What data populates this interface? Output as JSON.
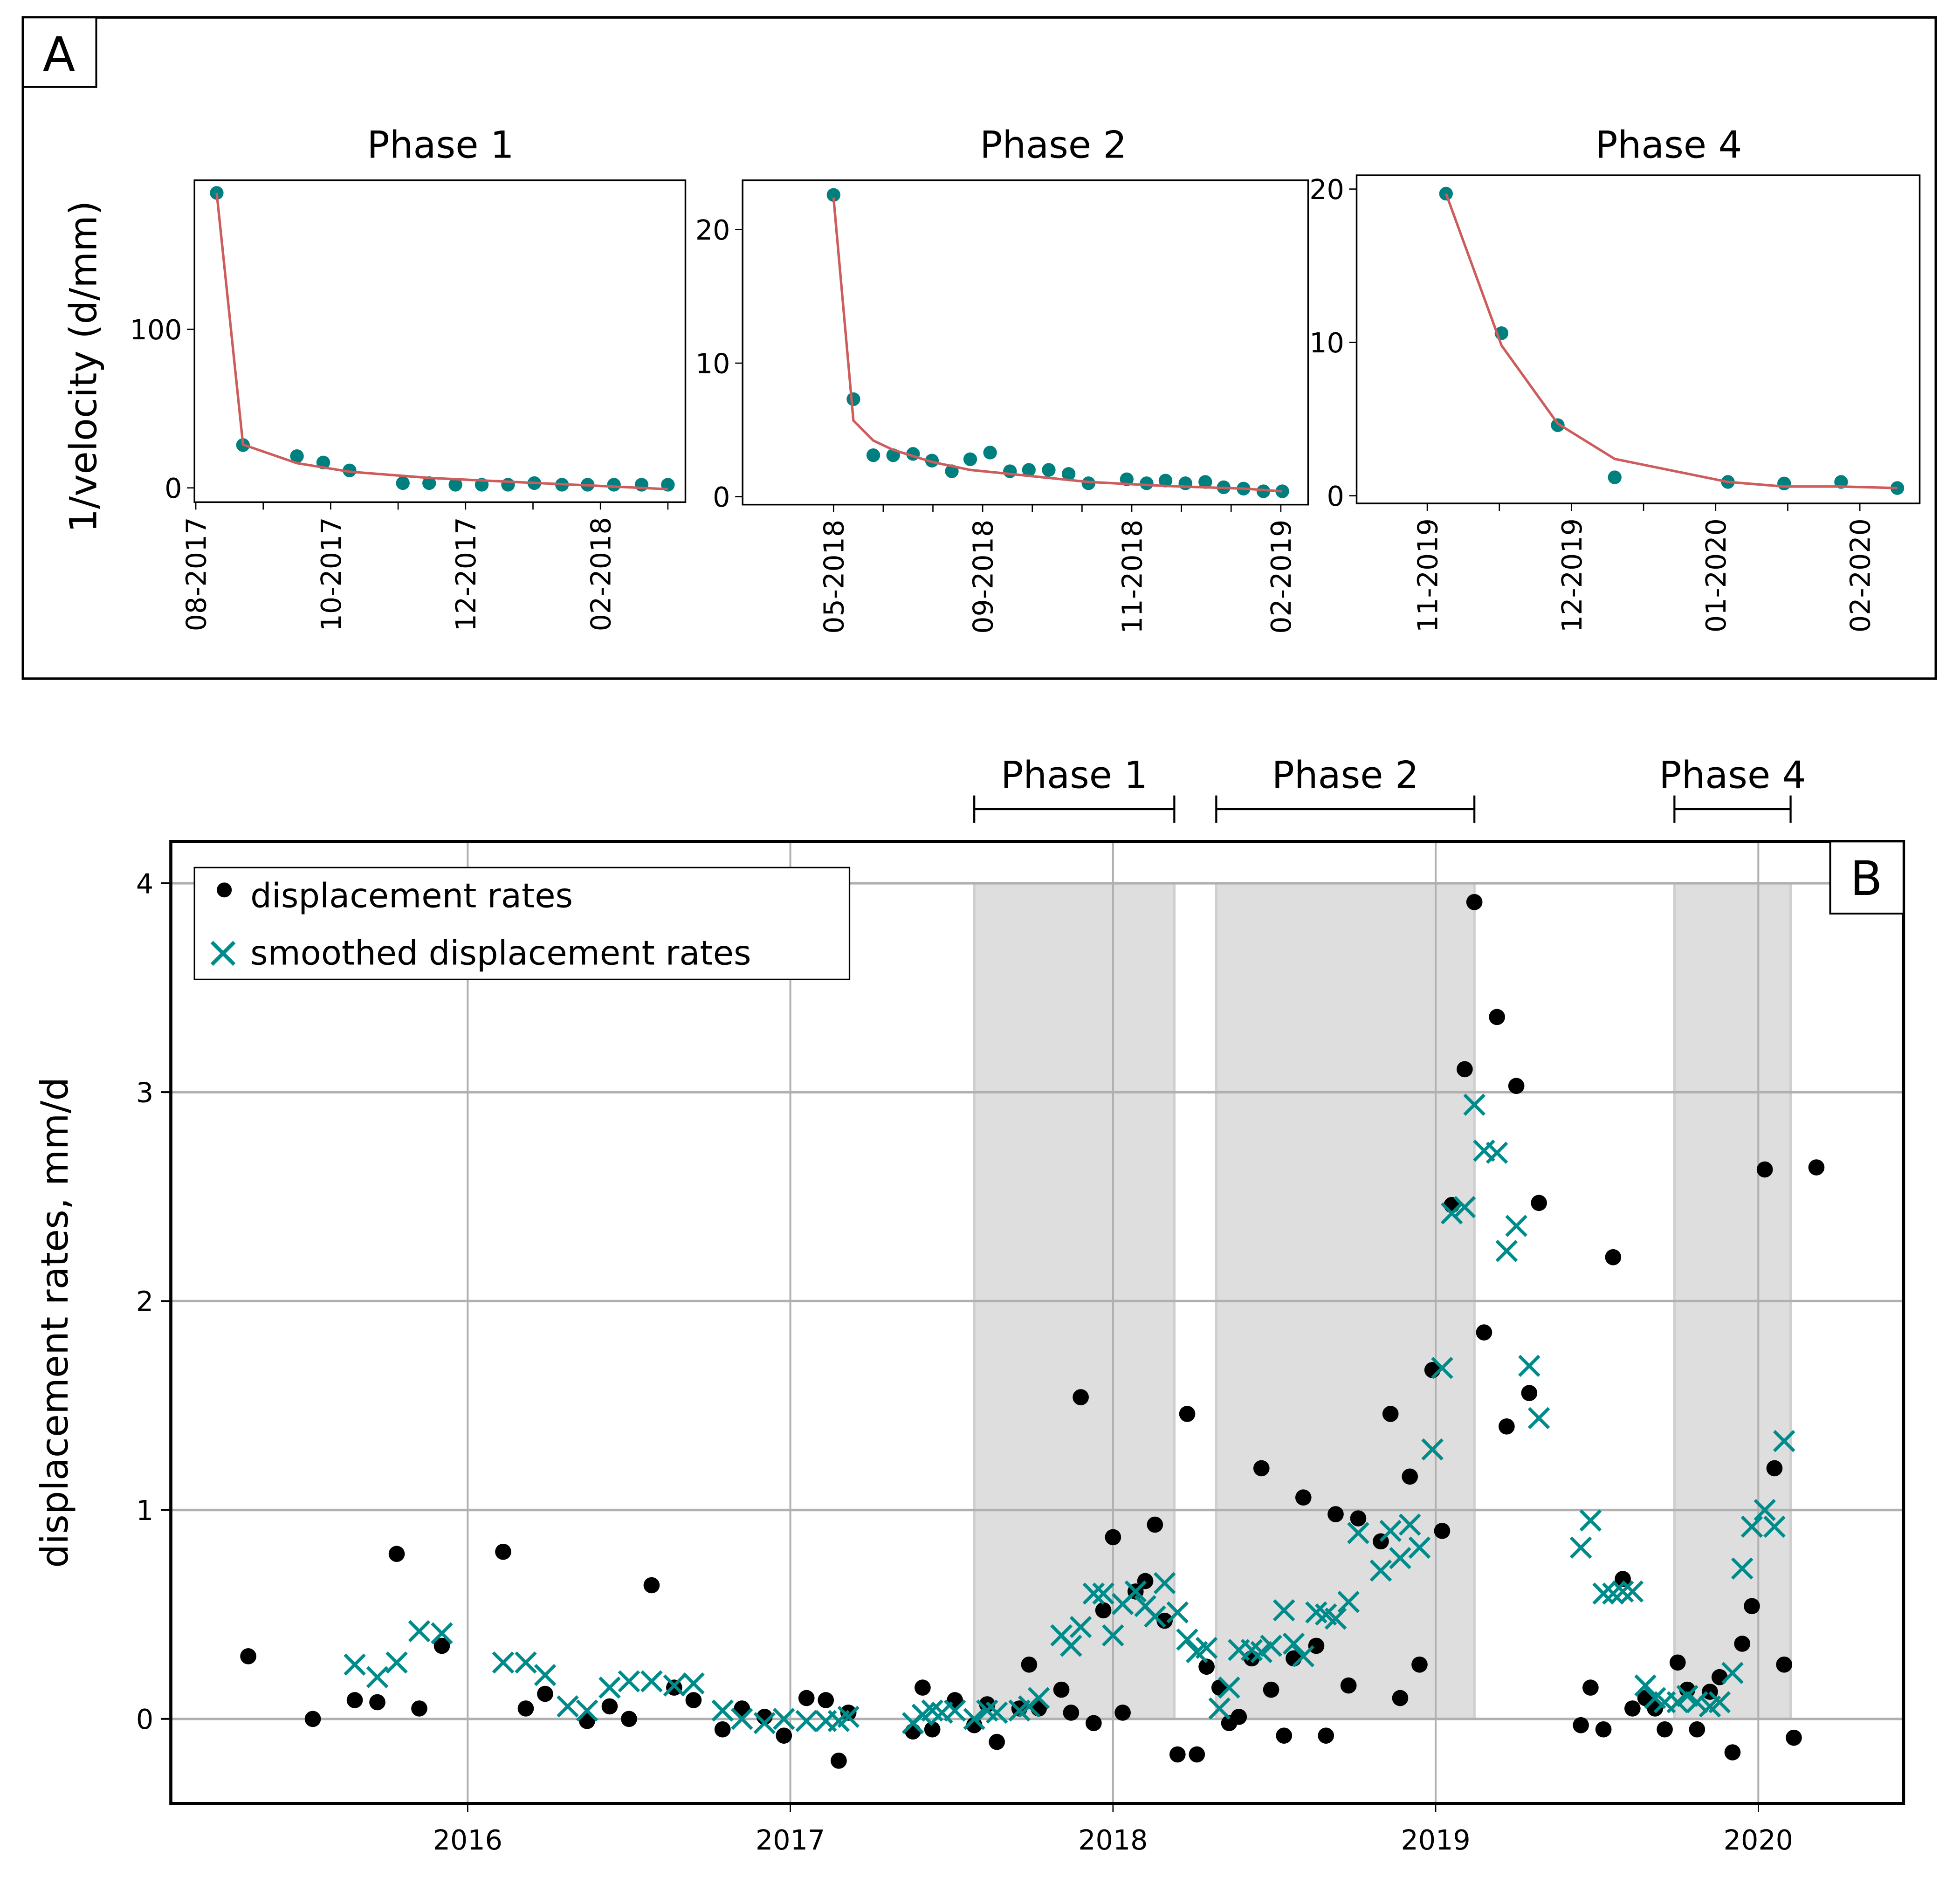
{
  "figure": {
    "panel_a_label": "A",
    "panel_b_label": "B"
  },
  "colors": {
    "marker_teal": "#007f7f",
    "fit_line": "#cd5c5c",
    "smoothed_cross": "#008b8b",
    "dot": "#000000",
    "phase_shade": "#dedede",
    "grid": "#b0b0b0"
  },
  "chart_data": [
    {
      "id": "panel-a-phase-1",
      "type": "scatter",
      "title": "Phase 1",
      "ylabel": "1/velocity (d/mm)",
      "xlabel": "",
      "x_unit": "tick index (1 tick = 1 month)",
      "x_ticks": [
        "08-2017",
        "",
        "10-2017",
        "",
        "12-2017",
        "",
        "02-2018",
        ""
      ],
      "xlim": [
        -0.02,
        7.26
      ],
      "y_ticks": [
        0,
        100
      ],
      "ylim": [
        -9,
        194
      ],
      "points": {
        "x": [
          0.31,
          0.7,
          1.5,
          1.89,
          2.28,
          3.07,
          3.46,
          3.85,
          4.24,
          4.63,
          5.02,
          5.43,
          5.81,
          6.2,
          6.61,
          7.0
        ],
        "y": [
          186,
          27,
          20,
          16,
          11,
          3,
          3,
          2,
          2,
          2,
          3,
          2,
          2,
          2,
          2,
          2
        ]
      },
      "fit_line": {
        "x": [
          0.31,
          0.7,
          1.5,
          2.28,
          3.46,
          4.63,
          5.81,
          7.0
        ],
        "y": [
          186,
          27.3,
          15.6,
          10.2,
          6.3,
          3.9,
          1.6,
          -0.8
        ]
      }
    },
    {
      "id": "panel-a-phase-2",
      "type": "scatter",
      "title": "Phase 2",
      "ylabel": "",
      "xlabel": "",
      "x_unit": "tick index",
      "x_ticks": [
        "05-2018",
        "",
        "",
        "09-2018",
        "",
        "",
        "11-2018",
        "",
        "",
        "02-2019"
      ],
      "xlim": [
        -1.83,
        9.55
      ],
      "y_ticks": [
        0,
        10,
        20
      ],
      "ylim": [
        -0.6,
        23.7
      ],
      "points": {
        "x": [
          0.0,
          0.4,
          0.8,
          1.2,
          1.6,
          1.98,
          2.38,
          2.75,
          3.15,
          3.55,
          3.93,
          4.33,
          4.73,
          5.13,
          5.9,
          6.3,
          6.68,
          7.08,
          7.48,
          7.85,
          8.25,
          8.65,
          9.03
        ],
        "y": [
          22.6,
          7.3,
          3.1,
          3.1,
          3.2,
          2.7,
          1.9,
          2.8,
          3.3,
          1.9,
          2.0,
          2.0,
          1.7,
          1.0,
          1.3,
          1.0,
          1.2,
          1.0,
          1.1,
          0.7,
          0.6,
          0.4,
          0.4
        ]
      },
      "fit_line": {
        "x": [
          0.0,
          0.4,
          0.8,
          1.2,
          1.98,
          2.75,
          3.55,
          5.13,
          6.68,
          8.25,
          9.03
        ],
        "y": [
          22.4,
          5.7,
          4.2,
          3.5,
          2.6,
          2.0,
          1.7,
          1.1,
          0.8,
          0.6,
          0.4
        ]
      }
    },
    {
      "id": "panel-a-phase-4",
      "type": "scatter",
      "title": "Phase 4",
      "ylabel": "",
      "xlabel": "",
      "x_unit": "tick index (1 tick ≈ half month)",
      "x_ticks": [
        "11-2019",
        "",
        "12-2019",
        "",
        "01-2020",
        "",
        "02-2020"
      ],
      "xlim": [
        -0.98,
        6.83
      ],
      "y_ticks": [
        0,
        10,
        20
      ],
      "ylim": [
        -0.5,
        20.9
      ],
      "points": {
        "x": [
          0.26,
          1.03,
          1.81,
          2.6,
          4.17,
          4.95,
          5.74,
          6.52
        ],
        "y": [
          19.7,
          10.6,
          4.6,
          1.2,
          0.9,
          0.8,
          0.9,
          0.5
        ]
      },
      "fit_line": {
        "x": [
          0.26,
          1.03,
          1.81,
          2.6,
          4.17,
          4.95,
          5.74,
          6.52
        ],
        "y": [
          19.7,
          9.8,
          4.7,
          2.4,
          0.9,
          0.6,
          0.6,
          0.5
        ]
      }
    },
    {
      "id": "panel-b",
      "type": "scatter",
      "title": "",
      "xlabel": "",
      "ylabel": "displacement rates, mm/d",
      "x_unit": "decimal year",
      "x_ticks": [
        2016,
        2017,
        2018,
        2019,
        2020
      ],
      "xlim": [
        2015.08,
        2020.45
      ],
      "y_ticks": [
        0,
        1,
        2,
        3,
        4
      ],
      "ylim": [
        -0.405,
        4.2
      ],
      "grid": true,
      "legend": {
        "position": "top-left",
        "entries": [
          {
            "label": "displacement rates",
            "marker": "dot"
          },
          {
            "label": "smoothed displacement rates",
            "marker": "x"
          }
        ]
      },
      "phases": [
        {
          "label": "Phase 1",
          "start": 2017.57,
          "end": 2018.19
        },
        {
          "label": "Phase 2",
          "start": 2018.32,
          "end": 2019.12
        },
        {
          "label": "Phase 4",
          "start": 2019.74,
          "end": 2020.1
        }
      ],
      "phase_shade_top": 4.0,
      "series": [
        {
          "name": "displacement rates",
          "marker": "dot",
          "x": [
            2015.32,
            2015.52,
            2015.65,
            2015.72,
            2015.78,
            2015.85,
            2015.92,
            2016.11,
            2016.18,
            2016.24,
            2016.37,
            2016.44,
            2016.5,
            2016.57,
            2016.64,
            2016.7,
            2016.79,
            2016.85,
            2016.92,
            2016.98,
            2017.05,
            2017.11,
            2017.15,
            2017.18,
            2017.38,
            2017.41,
            2017.44,
            2017.51,
            2017.57,
            2017.61,
            2017.64,
            2017.71,
            2017.74,
            2017.77,
            2017.84,
            2017.87,
            2017.9,
            2017.94,
            2017.97,
            2018.0,
            2018.03,
            2018.07,
            2018.1,
            2018.13,
            2018.16,
            2018.2,
            2018.23,
            2018.26,
            2018.29,
            2018.33,
            2018.36,
            2018.39,
            2018.43,
            2018.46,
            2018.49,
            2018.53,
            2018.56,
            2018.59,
            2018.63,
            2018.66,
            2018.69,
            2018.73,
            2018.76,
            2018.83,
            2018.86,
            2018.89,
            2018.92,
            2018.95,
            2018.99,
            2019.02,
            2019.05,
            2019.09,
            2019.12,
            2019.15,
            2019.19,
            2019.22,
            2019.25,
            2019.29,
            2019.32,
            2019.45,
            2019.48,
            2019.52,
            2019.55,
            2019.58,
            2019.61,
            2019.65,
            2019.68,
            2019.71,
            2019.75,
            2019.78,
            2019.81,
            2019.85,
            2019.88,
            2019.92,
            2019.95,
            2019.98,
            2020.02,
            2020.05,
            2020.08,
            2020.11,
            2020.18
          ],
          "y": [
            0.3,
            0.0,
            0.09,
            0.08,
            0.79,
            0.05,
            0.35,
            0.8,
            0.05,
            0.12,
            -0.01,
            0.06,
            0.0,
            0.64,
            0.15,
            0.09,
            -0.05,
            0.05,
            0.01,
            -0.08,
            0.1,
            0.09,
            -0.2,
            0.03,
            -0.06,
            0.15,
            -0.05,
            0.09,
            -0.03,
            0.07,
            -0.11,
            0.05,
            0.26,
            0.05,
            0.14,
            0.03,
            1.54,
            -0.02,
            0.52,
            0.87,
            0.03,
            0.61,
            0.66,
            0.93,
            0.47,
            -0.17,
            1.46,
            -0.17,
            0.25,
            0.15,
            -0.02,
            0.01,
            0.29,
            1.2,
            0.14,
            -0.08,
            0.29,
            1.06,
            0.35,
            -0.08,
            0.98,
            0.16,
            0.96,
            0.85,
            1.46,
            0.1,
            1.16,
            0.26,
            1.67,
            0.9,
            2.46,
            3.11,
            3.91,
            1.85,
            3.36,
            1.4,
            3.03,
            1.56,
            2.47,
            -0.03,
            0.15,
            -0.05,
            2.21,
            0.67,
            0.05,
            0.1,
            0.05,
            -0.05,
            0.27,
            0.14,
            -0.05,
            0.13,
            0.2,
            -0.16,
            0.36,
            0.54,
            2.63,
            1.2,
            0.26,
            -0.09,
            2.64
          ]
        },
        {
          "name": "smoothed displacement rates",
          "marker": "x",
          "x": [
            2015.65,
            2015.72,
            2015.78,
            2015.85,
            2015.92,
            2016.11,
            2016.18,
            2016.24,
            2016.31,
            2016.37,
            2016.44,
            2016.5,
            2016.57,
            2016.64,
            2016.7,
            2016.79,
            2016.85,
            2016.92,
            2016.98,
            2017.05,
            2017.11,
            2017.15,
            2017.18,
            2017.38,
            2017.41,
            2017.44,
            2017.47,
            2017.51,
            2017.57,
            2017.61,
            2017.64,
            2017.71,
            2017.74,
            2017.77,
            2017.84,
            2017.87,
            2017.9,
            2017.94,
            2017.97,
            2018.0,
            2018.03,
            2018.07,
            2018.1,
            2018.13,
            2018.16,
            2018.2,
            2018.23,
            2018.26,
            2018.29,
            2018.33,
            2018.36,
            2018.39,
            2018.43,
            2018.46,
            2018.49,
            2018.53,
            2018.56,
            2018.59,
            2018.63,
            2018.66,
            2018.69,
            2018.73,
            2018.76,
            2018.83,
            2018.86,
            2018.89,
            2018.92,
            2018.95,
            2018.99,
            2019.02,
            2019.05,
            2019.09,
            2019.12,
            2019.15,
            2019.19,
            2019.22,
            2019.25,
            2019.29,
            2019.32,
            2019.45,
            2019.48,
            2019.52,
            2019.55,
            2019.58,
            2019.61,
            2019.65,
            2019.68,
            2019.71,
            2019.75,
            2019.78,
            2019.81,
            2019.85,
            2019.88,
            2019.92,
            2019.95,
            2019.98,
            2020.02,
            2020.05,
            2020.08
          ],
          "y": [
            0.26,
            0.2,
            0.27,
            0.42,
            0.41,
            0.27,
            0.27,
            0.21,
            0.06,
            0.04,
            0.15,
            0.18,
            0.18,
            0.16,
            0.17,
            0.04,
            0.0,
            -0.02,
            0.0,
            -0.01,
            -0.01,
            -0.01,
            0.01,
            -0.02,
            0.02,
            0.04,
            0.03,
            0.04,
            0.0,
            0.04,
            0.03,
            0.04,
            0.06,
            0.1,
            0.4,
            0.35,
            0.44,
            0.6,
            0.6,
            0.4,
            0.55,
            0.61,
            0.54,
            0.49,
            0.65,
            0.51,
            0.38,
            0.32,
            0.34,
            0.05,
            0.15,
            0.33,
            0.33,
            0.32,
            0.35,
            0.52,
            0.36,
            0.3,
            0.51,
            0.5,
            0.48,
            0.56,
            0.89,
            0.71,
            0.9,
            0.77,
            0.93,
            0.82,
            1.29,
            1.68,
            2.42,
            2.45,
            2.94,
            2.72,
            2.71,
            2.24,
            2.36,
            1.69,
            1.44,
            0.82,
            0.95,
            0.6,
            0.6,
            0.61,
            0.61,
            0.16,
            0.1,
            0.08,
            0.08,
            0.11,
            0.08,
            0.06,
            0.08,
            0.22,
            0.72,
            0.92,
            1.0,
            0.92,
            1.33
          ]
        }
      ]
    }
  ]
}
